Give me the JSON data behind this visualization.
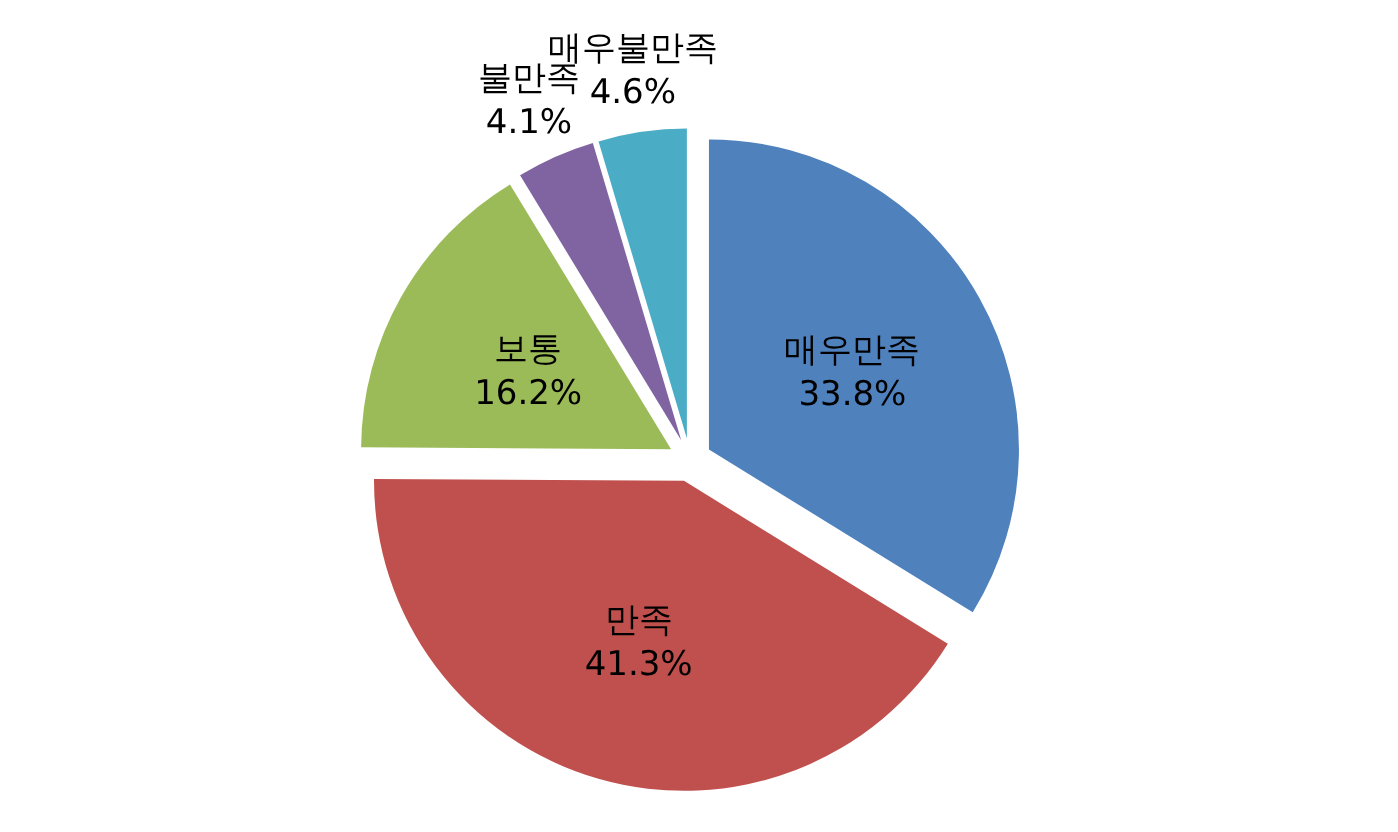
{
  "chart_data": {
    "type": "pie",
    "categories": [
      "매우만족",
      "만족",
      "보통",
      "불만족",
      "매우불만족"
    ],
    "values": [
      33.8,
      41.3,
      16.2,
      4.1,
      4.6
    ],
    "colors": [
      "#4f81bd",
      "#c0504d",
      "#9bbb59",
      "#8064a2",
      "#4bacc6"
    ],
    "value_labels": [
      "33.8%",
      "41.3%",
      "16.2%",
      "4.1%",
      "4.6%"
    ]
  }
}
